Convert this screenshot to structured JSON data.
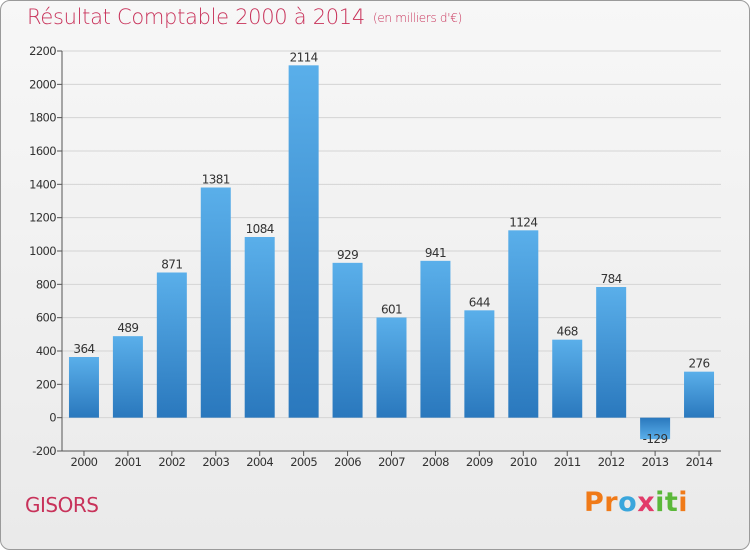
{
  "chart_data": {
    "type": "bar",
    "title": "Résultat Comptable 2000 à 2014",
    "subtitle": "(en milliers d'€)",
    "xlabel": "",
    "ylabel": "",
    "ylim": [
      -200,
      2200
    ],
    "yticks": [
      -200,
      0,
      200,
      400,
      600,
      800,
      1000,
      1200,
      1400,
      1600,
      1800,
      2000,
      2200
    ],
    "grid": true,
    "categories": [
      "2000",
      "2001",
      "2002",
      "2003",
      "2004",
      "2005",
      "2006",
      "2007",
      "2008",
      "2009",
      "2010",
      "2011",
      "2012",
      "2013",
      "2014"
    ],
    "values": [
      364,
      489,
      871,
      1381,
      1084,
      2114,
      929,
      601,
      941,
      644,
      1124,
      468,
      784,
      -129,
      276
    ],
    "bar_color": "#3d8fd6",
    "bar_color_light": "#5aafea",
    "bar_color_dark": "#2a78bd"
  },
  "commune": "GISORS",
  "brand": {
    "letters": [
      "P",
      "r",
      "o",
      "x",
      "i",
      "t",
      "i"
    ],
    "colors": [
      "#f07a18",
      "#f07a18",
      "#3aa6dc",
      "#e23c6a",
      "#5bb83a",
      "#5bb83a",
      "#f07a18"
    ]
  },
  "colors": {
    "title": "#c8325a",
    "grid": "#d4d4d4",
    "axis": "#555555",
    "text": "#333333"
  }
}
